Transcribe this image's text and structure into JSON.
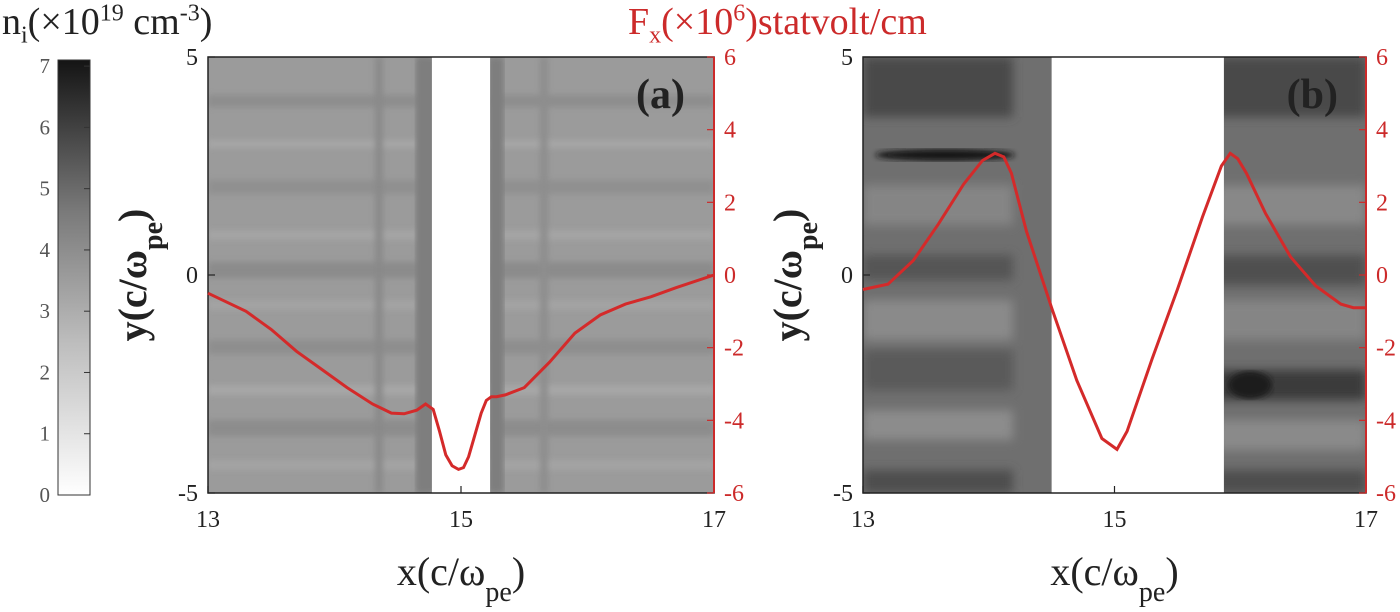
{
  "colorbar": {
    "title": "n",
    "title_sub": "i",
    "title_mid": "(×10",
    "title_sup": "19",
    "title_unit": " cm",
    "title_unit_sup": "-3",
    "title_end": ")",
    "ticks": [
      "0",
      "1",
      "2",
      "3",
      "4",
      "5",
      "6",
      "7"
    ],
    "range": [
      0,
      7.1
    ],
    "colormap": "gray-reversed"
  },
  "force_title": {
    "text": "F",
    "sub": "x",
    "mid": "(×10",
    "sup": "6",
    "end": ")statvolt/cm"
  },
  "colors": {
    "curve": "#d42a2a",
    "right_axis": "#cc2a2a",
    "axis": "#222222"
  },
  "chart_data": [
    {
      "type": "heatmap+line",
      "panel_label": "(a)",
      "xlabel": "x(c/ω",
      "xlabel_sub": "pe",
      "xlabel_end": ")",
      "ylabel": "y(c/ω",
      "ylabel_sub": "pe",
      "ylabel_end": ")",
      "xlim": [
        13,
        17
      ],
      "ylim": [
        -5,
        5
      ],
      "y2lim": [
        -6,
        6
      ],
      "xticks": [
        "13",
        "15",
        "17"
      ],
      "yticks": [
        "-5",
        "0",
        "5"
      ],
      "y2ticks": [
        "-6",
        "-4",
        "-2",
        "0",
        "2",
        "4",
        "6"
      ],
      "density_gap": [
        14.77,
        15.23
      ],
      "density_level": 3.2,
      "series": [
        {
          "x": [
            13.0,
            13.3,
            13.5,
            13.7,
            13.9,
            14.1,
            14.3,
            14.45,
            14.55,
            14.65,
            14.72,
            14.78,
            14.83,
            14.88,
            14.93,
            14.98,
            15.02,
            15.06,
            15.11,
            15.16,
            15.2,
            15.24,
            15.28,
            15.35,
            15.5,
            15.7,
            15.9,
            16.1,
            16.3,
            16.5,
            16.7,
            17.0
          ],
          "y": [
            -0.5,
            -1.0,
            -1.5,
            -2.1,
            -2.6,
            -3.1,
            -3.55,
            -3.8,
            -3.82,
            -3.72,
            -3.55,
            -3.7,
            -4.3,
            -4.95,
            -5.25,
            -5.35,
            -5.3,
            -5.0,
            -4.4,
            -3.8,
            -3.45,
            -3.35,
            -3.35,
            -3.3,
            -3.1,
            -2.4,
            -1.6,
            -1.1,
            -0.8,
            -0.6,
            -0.35,
            0.0
          ]
        }
      ]
    },
    {
      "type": "heatmap+line",
      "panel_label": "(b)",
      "xlabel": "x(c/ω",
      "xlabel_sub": "pe",
      "xlabel_end": ")",
      "ylabel": "y(c/ω",
      "ylabel_sub": "pe",
      "ylabel_end": ")",
      "xlim": [
        13,
        17
      ],
      "ylim": [
        -5,
        5
      ],
      "y2lim": [
        -6,
        6
      ],
      "xticks": [
        "13",
        "15",
        "17"
      ],
      "yticks": [
        "-5",
        "0",
        "5"
      ],
      "y2ticks": [
        "-6",
        "-4",
        "-2",
        "0",
        "2",
        "4",
        "6"
      ],
      "density_gap": [
        14.5,
        15.87
      ],
      "density_level": 4.2,
      "series": [
        {
          "x": [
            13.0,
            13.2,
            13.4,
            13.6,
            13.8,
            13.95,
            14.05,
            14.12,
            14.18,
            14.3,
            14.5,
            14.7,
            14.9,
            15.02,
            15.1,
            15.3,
            15.5,
            15.7,
            15.85,
            15.92,
            15.98,
            16.05,
            16.2,
            16.4,
            16.6,
            16.8,
            16.9,
            17.0
          ],
          "y": [
            -0.4,
            -0.25,
            0.4,
            1.4,
            2.5,
            3.15,
            3.35,
            3.25,
            2.8,
            1.2,
            -0.9,
            -2.9,
            -4.5,
            -4.8,
            -4.3,
            -2.3,
            -0.4,
            1.6,
            3.0,
            3.35,
            3.2,
            2.8,
            1.7,
            0.5,
            -0.3,
            -0.8,
            -0.9,
            -0.9
          ]
        }
      ]
    }
  ]
}
